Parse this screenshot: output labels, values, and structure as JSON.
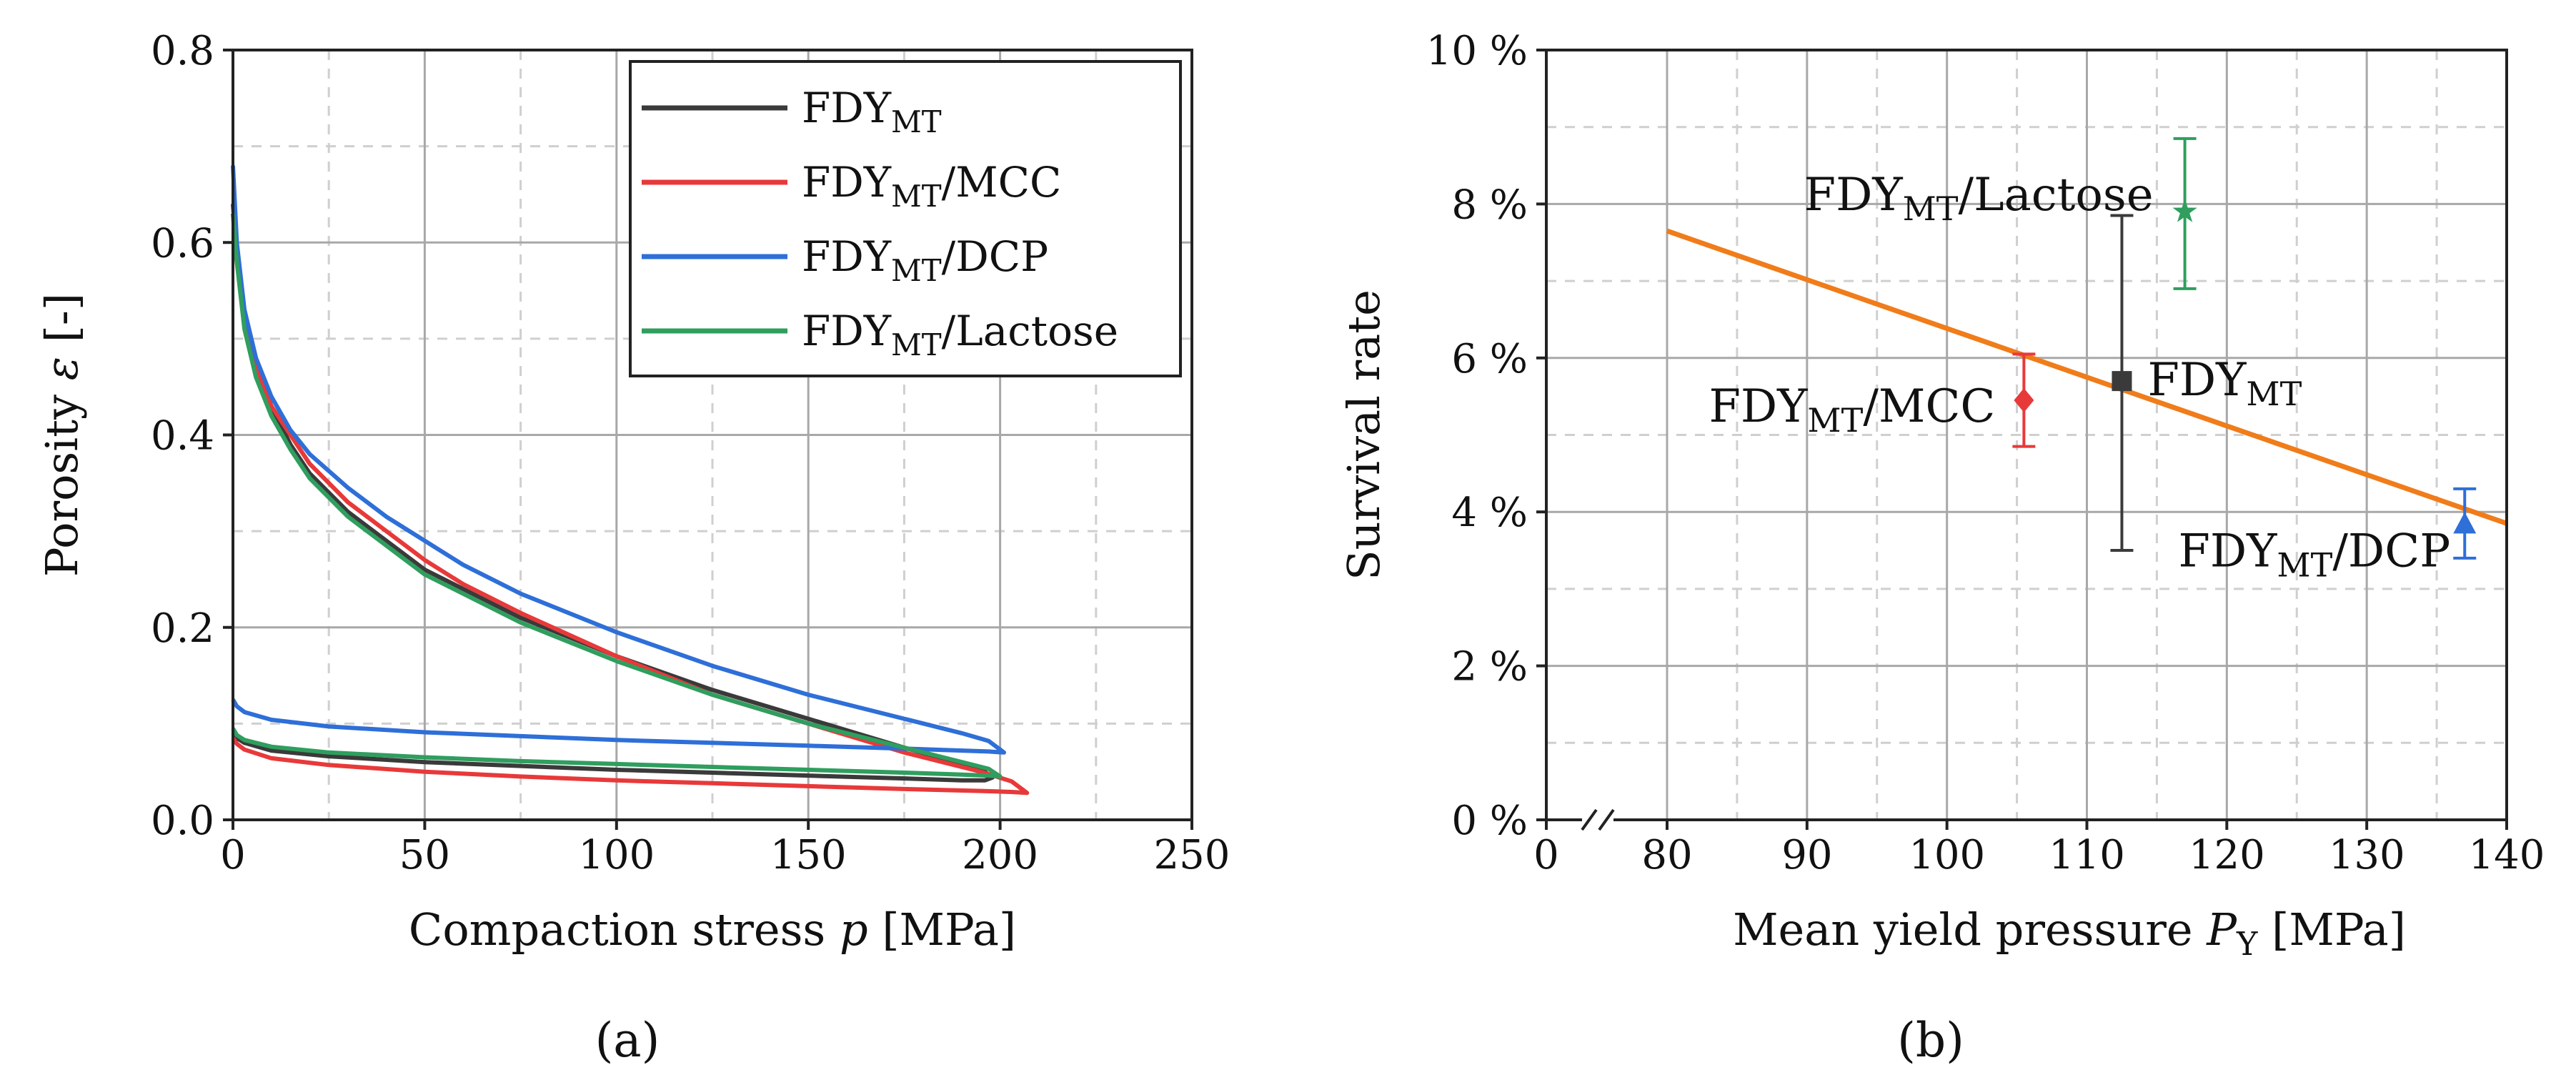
{
  "figure": {
    "panel_labels": [
      "(a)",
      "(b)"
    ]
  },
  "chart_data": [
    {
      "type": "line",
      "panel": "a",
      "xlabel": "Compaction stress p [MPa]",
      "xlabel_parts": {
        "text": "Compaction stress ",
        "var": "p",
        "unit": " [MPa]"
      },
      "ylabel": "Porosity ε [-]",
      "ylabel_parts": {
        "text": "Porosity ",
        "var": "ε",
        "unit": " [-]"
      },
      "xlim": [
        0,
        250
      ],
      "ylim": [
        0,
        0.8
      ],
      "xticks": [
        0,
        50,
        100,
        150,
        200,
        250
      ],
      "xtick_labels": [
        "0",
        "50",
        "100",
        "150",
        "200",
        "250"
      ],
      "yticks": [
        0.0,
        0.2,
        0.4,
        0.6,
        0.8
      ],
      "ytick_labels": [
        "0.0",
        "0.2",
        "0.4",
        "0.6",
        "0.8"
      ],
      "grid": true,
      "legend_position": "top-right",
      "series": [
        {
          "name": "FDY_MT",
          "label_main": "FDY",
          "label_sub": "MT",
          "label_suffix": "",
          "color": "#3a3a3a",
          "x": [
            0,
            1,
            3,
            6,
            10,
            15,
            20,
            30,
            40,
            50,
            60,
            75,
            100,
            125,
            150,
            175,
            190,
            196,
            198,
            196,
            190,
            175,
            150,
            125,
            100,
            75,
            50,
            25,
            10,
            3,
            1,
            0
          ],
          "y": [
            0.64,
            0.59,
            0.52,
            0.47,
            0.43,
            0.39,
            0.36,
            0.32,
            0.29,
            0.26,
            0.24,
            0.21,
            0.17,
            0.135,
            0.105,
            0.075,
            0.058,
            0.05,
            0.044,
            0.041,
            0.041,
            0.043,
            0.046,
            0.049,
            0.052,
            0.056,
            0.06,
            0.066,
            0.072,
            0.08,
            0.085,
            0.09
          ]
        },
        {
          "name": "FDY_MT/MCC",
          "label_main": "FDY",
          "label_sub": "MT",
          "label_suffix": "/MCC",
          "color": "#e8393a",
          "x": [
            0,
            1,
            3,
            6,
            10,
            15,
            20,
            30,
            40,
            50,
            60,
            75,
            100,
            125,
            150,
            175,
            195,
            203,
            207,
            203,
            195,
            175,
            150,
            125,
            100,
            75,
            50,
            25,
            10,
            3,
            1,
            0
          ],
          "y": [
            0.63,
            0.58,
            0.52,
            0.47,
            0.43,
            0.4,
            0.37,
            0.33,
            0.3,
            0.27,
            0.245,
            0.215,
            0.17,
            0.13,
            0.1,
            0.07,
            0.05,
            0.04,
            0.028,
            0.029,
            0.03,
            0.032,
            0.035,
            0.038,
            0.041,
            0.045,
            0.05,
            0.057,
            0.064,
            0.073,
            0.079,
            0.085
          ]
        },
        {
          "name": "FDY_MT/DCP",
          "label_main": "FDY",
          "label_sub": "MT",
          "label_suffix": "/DCP",
          "color": "#2e6fd8",
          "x": [
            0,
            1,
            3,
            6,
            10,
            15,
            20,
            30,
            40,
            50,
            60,
            75,
            100,
            125,
            150,
            175,
            190,
            197,
            201,
            197,
            190,
            175,
            150,
            125,
            100,
            75,
            50,
            25,
            10,
            3,
            1,
            0
          ],
          "y": [
            0.68,
            0.6,
            0.53,
            0.48,
            0.44,
            0.405,
            0.38,
            0.345,
            0.315,
            0.29,
            0.265,
            0.235,
            0.195,
            0.16,
            0.13,
            0.105,
            0.09,
            0.082,
            0.07,
            0.071,
            0.072,
            0.074,
            0.077,
            0.08,
            0.083,
            0.087,
            0.091,
            0.097,
            0.104,
            0.112,
            0.118,
            0.125
          ]
        },
        {
          "name": "FDY_MT/Lactose",
          "label_main": "FDY",
          "label_sub": "MT",
          "label_suffix": "/Lactose",
          "color": "#2f9e5e",
          "x": [
            0,
            1,
            3,
            6,
            10,
            15,
            20,
            30,
            40,
            50,
            60,
            75,
            100,
            125,
            150,
            175,
            190,
            197,
            200,
            197,
            190,
            175,
            150,
            125,
            100,
            75,
            50,
            25,
            10,
            3,
            1,
            0
          ],
          "y": [
            0.63,
            0.58,
            0.51,
            0.46,
            0.42,
            0.385,
            0.355,
            0.315,
            0.285,
            0.255,
            0.235,
            0.205,
            0.165,
            0.13,
            0.1,
            0.075,
            0.06,
            0.053,
            0.045,
            0.046,
            0.047,
            0.049,
            0.052,
            0.055,
            0.058,
            0.061,
            0.065,
            0.07,
            0.076,
            0.083,
            0.088,
            0.095
          ]
        }
      ]
    },
    {
      "type": "scatter",
      "panel": "b",
      "xlabel": "Mean yield pressure P_Y [MPa]",
      "xlabel_parts": {
        "text": "Mean yield pressure ",
        "var": "P",
        "sub": "Y",
        "unit": " [MPa]"
      },
      "ylabel": "Survival rate",
      "xlim": [
        70,
        140
      ],
      "axis_break_after": 0,
      "xticks": [
        80,
        90,
        100,
        110,
        120,
        130,
        140
      ],
      "xtick_labels": [
        "80",
        "90",
        "100",
        "110",
        "120",
        "130",
        "140"
      ],
      "xzero_label": "0",
      "ylim": [
        0,
        10
      ],
      "yticks": [
        0,
        2,
        4,
        6,
        8,
        10
      ],
      "ytick_labels": [
        "0 %",
        "2 %",
        "4 %",
        "6 %",
        "8 %",
        "10 %"
      ],
      "grid": true,
      "points": [
        {
          "name": "FDY_MT",
          "label_main": "FDY",
          "label_sub": "MT",
          "label_suffix": "",
          "x": 112.5,
          "y": 5.7,
          "err_low": 3.5,
          "err_high": 7.85,
          "color": "#3a3a3a",
          "marker": "square"
        },
        {
          "name": "FDY_MT/MCC",
          "label_main": "FDY",
          "label_sub": "MT",
          "label_suffix": "/MCC",
          "x": 105.5,
          "y": 5.45,
          "err_low": 4.85,
          "err_high": 6.05,
          "color": "#e8393a",
          "marker": "diamond"
        },
        {
          "name": "FDY_MT/DCP",
          "label_main": "FDY",
          "label_sub": "MT",
          "label_suffix": "/DCP",
          "x": 137,
          "y": 3.85,
          "err_low": 3.4,
          "err_high": 4.3,
          "color": "#2e6fd8",
          "marker": "triangle"
        },
        {
          "name": "FDY_MT/Lactose",
          "label_main": "FDY",
          "label_sub": "MT",
          "label_suffix": "/Lactose",
          "x": 117,
          "y": 7.9,
          "err_low": 6.9,
          "err_high": 8.85,
          "color": "#2f9e5e",
          "marker": "star"
        }
      ],
      "fit_line": {
        "x": [
          80,
          140
        ],
        "y": [
          7.65,
          3.85
        ],
        "color": "#f07c1a"
      }
    }
  ]
}
